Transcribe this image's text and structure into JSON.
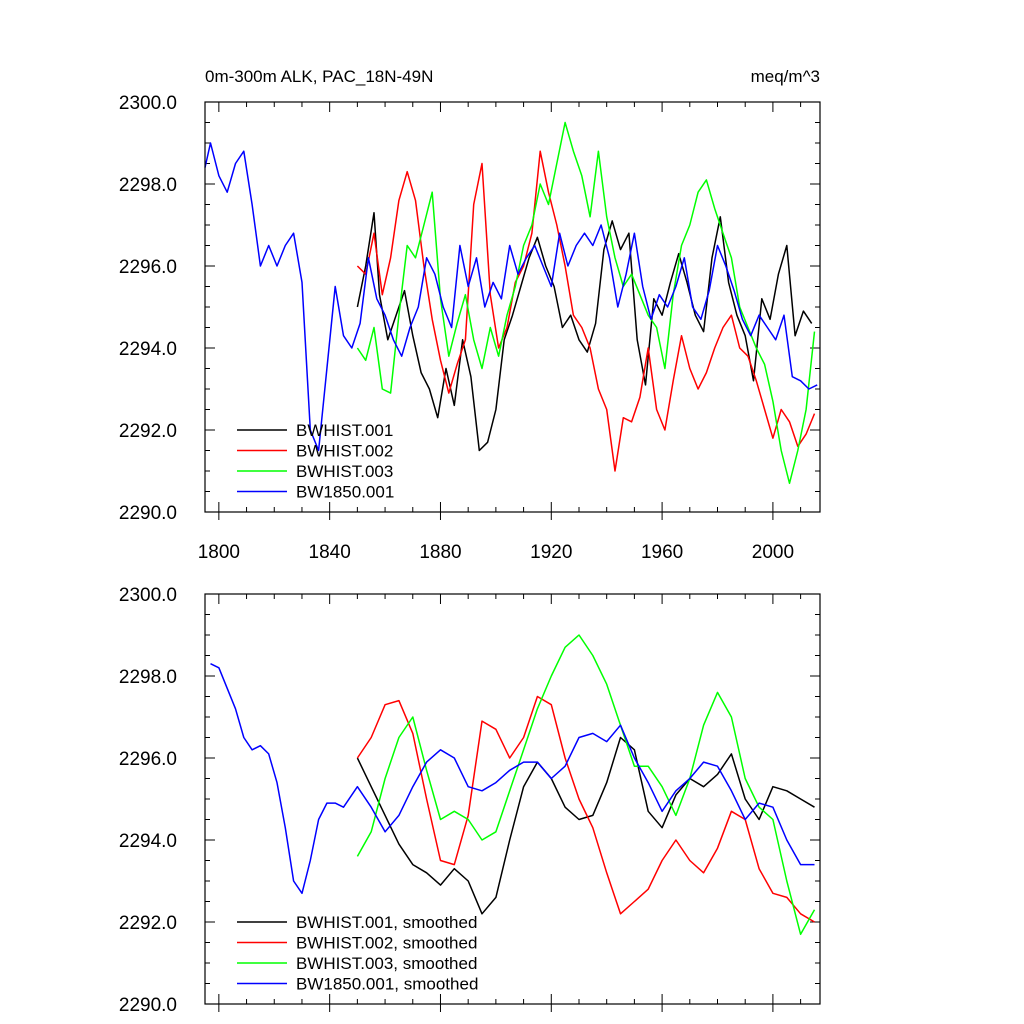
{
  "chart_data": [
    {
      "type": "line",
      "title_left": "0m-300m ALK, PAC_18N-49N",
      "title_right": "meq/m^3",
      "xlim": [
        1795,
        2017
      ],
      "ylim": [
        2290,
        2300
      ],
      "yticks": [
        "2290.0",
        "2292.0",
        "2294.0",
        "2296.0",
        "2298.0",
        "2300.0"
      ],
      "xticks": [
        "1800",
        "1840",
        "1880",
        "1920",
        "1960",
        "2000"
      ],
      "legend_position": "bottom-left",
      "series": [
        {
          "name": "BWHIST.001",
          "color": "#000000",
          "x": [
            1850,
            1853,
            1856,
            1858,
            1861,
            1864,
            1867,
            1870,
            1873,
            1876,
            1879,
            1882,
            1885,
            1888,
            1891,
            1894,
            1897,
            1900,
            1903,
            1906,
            1909,
            1912,
            1915,
            1918,
            1921,
            1924,
            1927,
            1930,
            1933,
            1936,
            1939,
            1942,
            1945,
            1948,
            1951,
            1954,
            1957,
            1960,
            1963,
            1966,
            1969,
            1972,
            1975,
            1978,
            1981,
            1984,
            1987,
            1990,
            1993,
            1996,
            1999,
            2002,
            2005,
            2008,
            2011,
            2014
          ],
          "y": [
            2295.0,
            2296.0,
            2297.3,
            2295.3,
            2294.2,
            2294.8,
            2295.4,
            2294.3,
            2293.4,
            2293.0,
            2292.3,
            2293.5,
            2292.6,
            2294.2,
            2293.3,
            2291.5,
            2291.7,
            2292.5,
            2294.2,
            2294.8,
            2295.5,
            2296.2,
            2296.7,
            2296.0,
            2295.5,
            2294.5,
            2294.8,
            2294.2,
            2293.9,
            2294.6,
            2296.4,
            2297.1,
            2296.4,
            2296.8,
            2294.2,
            2293.1,
            2295.2,
            2294.8,
            2295.6,
            2296.3,
            2295.6,
            2294.8,
            2294.4,
            2296.2,
            2297.2,
            2295.6,
            2294.8,
            2294.3,
            2293.2,
            2295.2,
            2294.7,
            2295.8,
            2296.5,
            2294.3,
            2294.9,
            2294.6
          ]
        },
        {
          "name": "BWHIST.002",
          "color": "#ff0000",
          "x": [
            1850,
            1853,
            1856,
            1859,
            1862,
            1865,
            1868,
            1871,
            1874,
            1877,
            1880,
            1883,
            1886,
            1889,
            1892,
            1895,
            1898,
            1901,
            1904,
            1907,
            1910,
            1913,
            1916,
            1919,
            1922,
            1925,
            1928,
            1931,
            1934,
            1937,
            1940,
            1943,
            1946,
            1949,
            1952,
            1955,
            1958,
            1961,
            1964,
            1967,
            1970,
            1973,
            1976,
            1979,
            1982,
            1985,
            1988,
            1991,
            1994,
            1997,
            2000,
            2003,
            2006,
            2009,
            2012,
            2015
          ],
          "y": [
            2296.0,
            2295.8,
            2296.8,
            2295.3,
            2296.2,
            2297.6,
            2298.3,
            2297.6,
            2296.0,
            2294.7,
            2293.7,
            2292.9,
            2293.6,
            2294.2,
            2297.5,
            2298.5,
            2295.3,
            2294.0,
            2294.5,
            2295.6,
            2296.0,
            2296.8,
            2298.8,
            2297.8,
            2297.0,
            2296.0,
            2294.8,
            2294.5,
            2294.0,
            2293.0,
            2292.5,
            2291.0,
            2292.3,
            2292.2,
            2292.8,
            2294.0,
            2292.5,
            2292.0,
            2293.2,
            2294.3,
            2293.5,
            2293.0,
            2293.4,
            2294.0,
            2294.5,
            2294.8,
            2294.0,
            2293.8,
            2293.2,
            2292.5,
            2291.8,
            2292.5,
            2292.2,
            2291.6,
            2291.9,
            2292.4
          ]
        },
        {
          "name": "BWHIST.003",
          "color": "#00ff00",
          "x": [
            1850,
            1853,
            1856,
            1859,
            1862,
            1865,
            1868,
            1871,
            1874,
            1877,
            1880,
            1883,
            1886,
            1889,
            1892,
            1895,
            1898,
            1901,
            1904,
            1907,
            1910,
            1913,
            1916,
            1919,
            1922,
            1925,
            1928,
            1931,
            1934,
            1937,
            1940,
            1943,
            1946,
            1949,
            1952,
            1955,
            1958,
            1961,
            1964,
            1967,
            1970,
            1973,
            1976,
            1979,
            1982,
            1985,
            1988,
            1991,
            1994,
            1997,
            2000,
            2003,
            2006,
            2009,
            2012,
            2015
          ],
          "y": [
            2294.0,
            2293.7,
            2294.5,
            2293.0,
            2292.9,
            2294.8,
            2296.5,
            2296.2,
            2297.0,
            2297.8,
            2295.2,
            2293.8,
            2294.6,
            2295.3,
            2294.2,
            2293.5,
            2294.5,
            2293.8,
            2294.8,
            2295.5,
            2296.5,
            2297.0,
            2298.0,
            2297.5,
            2298.5,
            2299.5,
            2298.8,
            2298.2,
            2297.2,
            2298.8,
            2297.2,
            2296.2,
            2295.5,
            2295.8,
            2295.3,
            2294.8,
            2294.5,
            2293.5,
            2295.3,
            2296.5,
            2297.0,
            2297.8,
            2298.1,
            2297.4,
            2296.8,
            2296.2,
            2295.0,
            2294.5,
            2294.0,
            2293.6,
            2292.7,
            2291.5,
            2290.7,
            2291.5,
            2292.5,
            2294.4
          ]
        },
        {
          "name": "BW1850.001",
          "color": "#0000ff",
          "x": [
            1795,
            1797,
            1800,
            1803,
            1806,
            1809,
            1812,
            1815,
            1818,
            1821,
            1824,
            1827,
            1830,
            1833,
            1836,
            1839,
            1842,
            1845,
            1848,
            1851,
            1854,
            1857,
            1860,
            1863,
            1866,
            1869,
            1872,
            1875,
            1878,
            1881,
            1884,
            1887,
            1890,
            1893,
            1896,
            1899,
            1902,
            1905,
            1908,
            1911,
            1914,
            1917,
            1920,
            1923,
            1926,
            1929,
            1932,
            1935,
            1938,
            1941,
            1944,
            1947,
            1950,
            1953,
            1956,
            1959,
            1962,
            1965,
            1968,
            1971,
            1974,
            1977,
            1980,
            1983,
            1986,
            1989,
            1992,
            1995,
            1998,
            2001,
            2004,
            2007,
            2010,
            2013,
            2016
          ],
          "y": [
            2298.4,
            2299.0,
            2298.2,
            2297.8,
            2298.5,
            2298.8,
            2297.5,
            2296.0,
            2296.5,
            2296.0,
            2296.5,
            2296.8,
            2295.6,
            2292.0,
            2291.5,
            2293.5,
            2295.5,
            2294.3,
            2294.0,
            2294.6,
            2296.2,
            2295.2,
            2294.8,
            2294.2,
            2293.8,
            2294.5,
            2295.0,
            2296.2,
            2295.8,
            2295.0,
            2294.5,
            2296.5,
            2295.5,
            2296.2,
            2295.0,
            2295.6,
            2295.2,
            2296.5,
            2295.8,
            2296.2,
            2296.5,
            2296.0,
            2295.5,
            2296.8,
            2296.0,
            2296.5,
            2296.8,
            2296.5,
            2297.0,
            2296.2,
            2295.0,
            2295.8,
            2296.8,
            2295.5,
            2294.7,
            2295.3,
            2295.0,
            2295.5,
            2296.2,
            2295.0,
            2294.7,
            2295.4,
            2296.5,
            2296.0,
            2295.4,
            2294.7,
            2294.3,
            2294.8,
            2294.5,
            2294.2,
            2294.8,
            2293.3,
            2293.2,
            2293.0,
            2293.1
          ]
        }
      ]
    },
    {
      "type": "line",
      "xlim": [
        1795,
        2017
      ],
      "ylim": [
        2290,
        2300
      ],
      "yticks": [
        "2290.0",
        "2292.0",
        "2294.0",
        "2296.0",
        "2298.0",
        "2300.0"
      ],
      "legend_position": "bottom-left",
      "series": [
        {
          "name": "BWHIST.001, smoothed",
          "color": "#000000",
          "x": [
            1850,
            1855,
            1860,
            1865,
            1870,
            1875,
            1880,
            1885,
            1890,
            1895,
            1900,
            1905,
            1910,
            1915,
            1920,
            1925,
            1930,
            1935,
            1940,
            1945,
            1950,
            1955,
            1960,
            1965,
            1970,
            1975,
            1980,
            1985,
            1990,
            1995,
            2000,
            2005,
            2010,
            2015
          ],
          "y": [
            2296.0,
            2295.3,
            2294.6,
            2293.9,
            2293.4,
            2293.2,
            2292.9,
            2293.3,
            2293.0,
            2292.2,
            2292.6,
            2294.0,
            2295.3,
            2295.9,
            2295.5,
            2294.8,
            2294.5,
            2294.6,
            2295.4,
            2296.5,
            2296.2,
            2294.7,
            2294.3,
            2295.1,
            2295.5,
            2295.3,
            2295.6,
            2296.1,
            2295.0,
            2294.5,
            2295.3,
            2295.2,
            2295.0,
            2294.8
          ]
        },
        {
          "name": "BWHIST.002, smoothed",
          "color": "#ff0000",
          "x": [
            1850,
            1855,
            1860,
            1865,
            1870,
            1875,
            1880,
            1885,
            1890,
            1895,
            1900,
            1905,
            1910,
            1915,
            1920,
            1925,
            1930,
            1935,
            1940,
            1945,
            1950,
            1955,
            1960,
            1965,
            1970,
            1975,
            1980,
            1985,
            1990,
            1995,
            2000,
            2005,
            2010,
            2015
          ],
          "y": [
            2296.0,
            2296.5,
            2297.3,
            2297.4,
            2296.6,
            2295.0,
            2293.5,
            2293.4,
            2294.6,
            2296.9,
            2296.7,
            2296.0,
            2296.5,
            2297.5,
            2297.3,
            2296.0,
            2295.0,
            2294.3,
            2293.2,
            2292.2,
            2292.5,
            2292.8,
            2293.5,
            2294.0,
            2293.5,
            2293.2,
            2293.8,
            2294.7,
            2294.5,
            2293.3,
            2292.7,
            2292.6,
            2292.2,
            2292.0
          ]
        },
        {
          "name": "BWHIST.003, smoothed",
          "color": "#00ff00",
          "x": [
            1850,
            1855,
            1860,
            1865,
            1870,
            1875,
            1880,
            1885,
            1890,
            1895,
            1900,
            1905,
            1910,
            1915,
            1920,
            1925,
            1930,
            1935,
            1940,
            1945,
            1950,
            1955,
            1960,
            1965,
            1970,
            1975,
            1980,
            1985,
            1990,
            1995,
            2000,
            2005,
            2010,
            2015
          ],
          "y": [
            2293.6,
            2294.2,
            2295.5,
            2296.5,
            2297.0,
            2295.7,
            2294.5,
            2294.7,
            2294.5,
            2294.0,
            2294.2,
            2295.2,
            2296.2,
            2297.2,
            2298.0,
            2298.7,
            2299.0,
            2298.5,
            2297.8,
            2296.8,
            2295.8,
            2295.8,
            2295.3,
            2294.6,
            2295.5,
            2296.8,
            2297.6,
            2297.0,
            2295.5,
            2294.8,
            2294.5,
            2293.0,
            2291.7,
            2292.3
          ]
        },
        {
          "name": "BW1850.001, smoothed",
          "color": "#0000ff",
          "x": [
            1797,
            1800,
            1803,
            1806,
            1809,
            1812,
            1815,
            1818,
            1821,
            1824,
            1827,
            1830,
            1833,
            1836,
            1839,
            1842,
            1845,
            1850,
            1855,
            1860,
            1865,
            1870,
            1875,
            1880,
            1885,
            1890,
            1895,
            1900,
            1905,
            1910,
            1915,
            1920,
            1925,
            1930,
            1935,
            1940,
            1945,
            1950,
            1955,
            1960,
            1965,
            1970,
            1975,
            1980,
            1985,
            1990,
            1995,
            2000,
            2005,
            2010,
            2015
          ],
          "y": [
            2298.3,
            2298.2,
            2297.7,
            2297.2,
            2296.5,
            2296.2,
            2296.3,
            2296.1,
            2295.4,
            2294.3,
            2293.0,
            2292.7,
            2293.5,
            2294.5,
            2294.9,
            2294.9,
            2294.8,
            2295.3,
            2294.8,
            2294.2,
            2294.6,
            2295.3,
            2295.9,
            2296.2,
            2296.0,
            2295.3,
            2295.2,
            2295.4,
            2295.7,
            2295.9,
            2295.9,
            2295.5,
            2295.8,
            2296.5,
            2296.6,
            2296.4,
            2296.8,
            2296.0,
            2295.4,
            2294.7,
            2295.2,
            2295.5,
            2295.9,
            2295.8,
            2295.2,
            2294.5,
            2294.9,
            2294.8,
            2294.0,
            2293.4,
            2293.4
          ]
        }
      ]
    }
  ]
}
